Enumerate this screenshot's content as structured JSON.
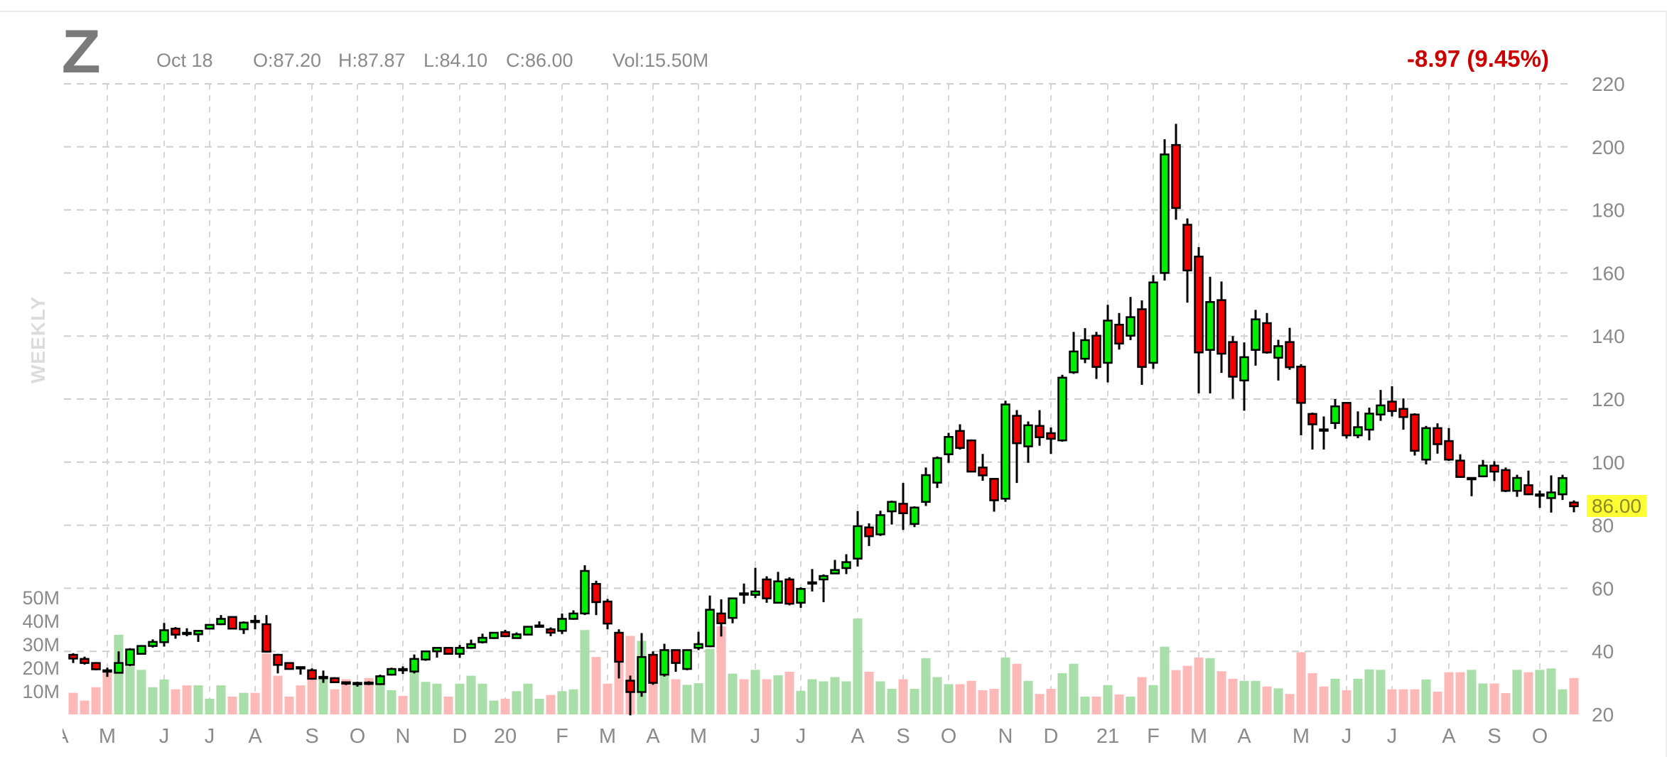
{
  "header": {
    "symbol": "Z",
    "date": "Oct 18",
    "open": "O:87.20",
    "high": "H:87.87",
    "low": "L:84.10",
    "close": "C:86.00",
    "volume": "Vol:15.50M",
    "change": "-8.97 (9.45%)",
    "interval": "WEEKLY",
    "last_price": "86.00"
  },
  "colors": {
    "up": "#00ee00",
    "down": "#ee0000",
    "volume_up": "#a8dfa8",
    "volume_down": "#ffb8b8",
    "change_text": "#cc0000",
    "last_price_highlight": "#ffff33"
  },
  "chart_data": {
    "type": "candlestick",
    "interval": "weekly",
    "ylim": [
      20,
      220
    ],
    "yticks": [
      220,
      200,
      180,
      160,
      140,
      120,
      100,
      80,
      60,
      40,
      20
    ],
    "volume_ticks": [
      {
        "label": "50M",
        "value": 50
      },
      {
        "label": "40M",
        "value": 40
      },
      {
        "label": "30M",
        "value": 30
      },
      {
        "label": "20M",
        "value": 20
      },
      {
        "label": "10M",
        "value": 10
      }
    ],
    "grid": true,
    "xticks": [
      {
        "label": "A",
        "date": "2019-04-01"
      },
      {
        "label": "M",
        "date": "2019-04-29"
      },
      {
        "label": "J",
        "date": "2019-06-03"
      },
      {
        "label": "J",
        "date": "2019-07-01"
      },
      {
        "label": "A",
        "date": "2019-07-29"
      },
      {
        "label": "S",
        "date": "2019-09-02"
      },
      {
        "label": "O",
        "date": "2019-09-30"
      },
      {
        "label": "N",
        "date": "2019-10-28"
      },
      {
        "label": "D",
        "date": "2019-12-02"
      },
      {
        "label": "20",
        "date": "2019-12-30"
      },
      {
        "label": "F",
        "date": "2020-02-03"
      },
      {
        "label": "M",
        "date": "2020-03-02"
      },
      {
        "label": "A",
        "date": "2020-03-30"
      },
      {
        "label": "M",
        "date": "2020-04-27"
      },
      {
        "label": "J",
        "date": "2020-06-01"
      },
      {
        "label": "J",
        "date": "2020-06-29"
      },
      {
        "label": "A",
        "date": "2020-08-03"
      },
      {
        "label": "S",
        "date": "2020-08-31"
      },
      {
        "label": "O",
        "date": "2020-09-28"
      },
      {
        "label": "N",
        "date": "2020-11-02"
      },
      {
        "label": "D",
        "date": "2020-11-30"
      },
      {
        "label": "21",
        "date": "2021-01-04"
      },
      {
        "label": "F",
        "date": "2021-02-01"
      },
      {
        "label": "M",
        "date": "2021-03-01"
      },
      {
        "label": "A",
        "date": "2021-03-29"
      },
      {
        "label": "M",
        "date": "2021-05-03"
      },
      {
        "label": "J",
        "date": "2021-05-31"
      },
      {
        "label": "J",
        "date": "2021-06-28"
      },
      {
        "label": "A",
        "date": "2021-08-02"
      },
      {
        "label": "S",
        "date": "2021-08-30"
      },
      {
        "label": "O",
        "date": "2021-09-27"
      }
    ],
    "columns": [
      "date",
      "open",
      "high",
      "low",
      "close",
      "volume_M"
    ],
    "candles": [
      [
        "2019-04-08",
        38.9,
        39.4,
        36.3,
        37.7,
        9.2
      ],
      [
        "2019-04-15",
        37.6,
        38.3,
        35.8,
        36.3,
        5.9
      ],
      [
        "2019-04-22",
        36.3,
        36.6,
        34.0,
        34.3,
        11.6
      ],
      [
        "2019-04-29",
        34.0,
        34.8,
        31.9,
        33.9,
        18.3
      ],
      [
        "2019-05-06",
        33.2,
        40.0,
        33.0,
        36.3,
        34.0
      ],
      [
        "2019-05-13",
        35.7,
        41.0,
        35.3,
        40.6,
        20.5
      ],
      [
        "2019-05-20",
        39.2,
        42.0,
        39.0,
        41.7,
        19.0
      ],
      [
        "2019-05-27",
        41.7,
        43.8,
        41.2,
        43.0,
        11.6
      ],
      [
        "2019-06-03",
        42.9,
        49.0,
        41.5,
        46.7,
        14.9
      ],
      [
        "2019-06-10",
        47.2,
        47.7,
        44.0,
        45.3,
        10.7
      ],
      [
        "2019-06-17",
        45.9,
        47.3,
        44.8,
        45.7,
        12.4
      ],
      [
        "2019-06-24",
        45.4,
        46.7,
        43.0,
        46.5,
        12.4
      ],
      [
        "2019-07-01",
        47.2,
        48.6,
        47.0,
        48.4,
        6.7
      ],
      [
        "2019-07-08",
        48.6,
        51.5,
        48.3,
        50.3,
        12.4
      ],
      [
        "2019-07-15",
        50.9,
        51.0,
        47.1,
        47.2,
        7.6
      ],
      [
        "2019-07-22",
        47.0,
        49.5,
        45.5,
        49.1,
        9.2
      ],
      [
        "2019-07-29",
        49.7,
        51.5,
        47.0,
        49.6,
        9.2
      ],
      [
        "2019-08-05",
        48.6,
        51.5,
        39.6,
        39.9,
        26.0
      ],
      [
        "2019-08-12",
        38.9,
        39.2,
        33.0,
        35.7,
        16.5
      ],
      [
        "2019-08-19",
        36.3,
        36.5,
        34.2,
        34.4,
        7.6
      ],
      [
        "2019-08-26",
        35.0,
        35.1,
        32.6,
        34.6,
        12.4
      ],
      [
        "2019-09-02",
        34.0,
        34.6,
        31.0,
        31.3,
        15.0
      ],
      [
        "2019-09-09",
        31.8,
        33.9,
        30.0,
        31.9,
        16.5
      ],
      [
        "2019-09-16",
        31.5,
        31.8,
        30.0,
        30.2,
        10.7
      ],
      [
        "2019-09-23",
        30.2,
        30.4,
        29.3,
        29.9,
        15.0
      ],
      [
        "2019-09-30",
        29.9,
        30.4,
        28.8,
        30.0,
        12.4
      ],
      [
        "2019-10-07",
        30.1,
        30.5,
        29.3,
        30.0,
        15.5
      ],
      [
        "2019-10-14",
        29.6,
        32.6,
        29.3,
        32.1,
        13.1
      ],
      [
        "2019-10-21",
        32.6,
        34.8,
        32.3,
        34.4,
        10.3
      ],
      [
        "2019-10-28",
        34.4,
        35.2,
        32.8,
        34.3,
        7.9
      ],
      [
        "2019-11-04",
        33.6,
        39.0,
        33.0,
        37.6,
        18.3
      ],
      [
        "2019-11-11",
        37.4,
        40.2,
        37.0,
        40.0,
        13.9
      ],
      [
        "2019-11-18",
        40.0,
        41.3,
        38.0,
        41.1,
        13.1
      ],
      [
        "2019-11-25",
        41.1,
        41.3,
        39.0,
        39.2,
        7.6
      ],
      [
        "2019-12-02",
        39.2,
        42.0,
        37.9,
        41.1,
        13.1
      ],
      [
        "2019-12-09",
        41.1,
        43.7,
        40.8,
        42.3,
        16.5
      ],
      [
        "2019-12-16",
        42.9,
        45.6,
        42.5,
        44.3,
        13.1
      ],
      [
        "2019-12-23",
        44.2,
        46.0,
        43.9,
        45.9,
        5.9
      ],
      [
        "2019-12-30",
        46.1,
        46.8,
        44.5,
        44.8,
        6.7
      ],
      [
        "2020-01-06",
        44.2,
        46.0,
        44.0,
        45.4,
        9.9
      ],
      [
        "2020-01-13",
        45.3,
        48.0,
        45.1,
        47.8,
        13.1
      ],
      [
        "2020-01-20",
        48.0,
        49.5,
        47.8,
        48.2,
        6.7
      ],
      [
        "2020-01-27",
        47.0,
        47.6,
        44.8,
        45.9,
        8.3
      ],
      [
        "2020-02-03",
        46.5,
        52.0,
        45.5,
        50.3,
        9.9
      ],
      [
        "2020-02-10",
        50.3,
        53.0,
        50.0,
        52.0,
        10.7
      ],
      [
        "2020-02-17",
        52.0,
        67.3,
        51.5,
        65.5,
        36.0
      ],
      [
        "2020-02-24",
        61.4,
        62.4,
        51.5,
        55.6,
        24.5
      ],
      [
        "2020-03-02",
        55.8,
        56.6,
        47.0,
        48.8,
        13.1
      ],
      [
        "2020-03-09",
        45.9,
        47.0,
        31.4,
        36.7,
        33.5
      ],
      [
        "2020-03-16",
        30.7,
        32.3,
        19.7,
        27.1,
        33.5
      ],
      [
        "2020-03-23",
        27.1,
        45.8,
        25.6,
        38.2,
        31.4
      ],
      [
        "2020-03-30",
        38.9,
        40.0,
        29.4,
        30.0,
        13.1
      ],
      [
        "2020-04-06",
        32.6,
        42.4,
        32.0,
        40.4,
        16.6
      ],
      [
        "2020-04-13",
        40.4,
        40.6,
        33.5,
        36.3,
        15.0
      ],
      [
        "2020-04-20",
        34.4,
        40.6,
        34.0,
        40.4,
        12.6
      ],
      [
        "2020-04-27",
        41.1,
        46.2,
        40.4,
        42.3,
        13.3
      ],
      [
        "2020-05-04",
        41.6,
        57.7,
        41.3,
        53.2,
        28.0
      ],
      [
        "2020-05-11",
        52.0,
        56.5,
        44.7,
        48.9,
        37.6
      ],
      [
        "2020-05-18",
        50.6,
        57.0,
        48.9,
        56.8,
        17.4
      ],
      [
        "2020-05-25",
        58.4,
        61.5,
        55.1,
        58.2,
        15.0
      ],
      [
        "2020-06-01",
        57.9,
        66.5,
        56.9,
        59.0,
        19.0
      ],
      [
        "2020-06-08",
        62.8,
        63.8,
        55.4,
        56.8,
        15.0
      ],
      [
        "2020-06-15",
        55.4,
        65.2,
        55.2,
        62.2,
        16.7
      ],
      [
        "2020-06-22",
        62.8,
        63.5,
        54.6,
        55.1,
        18.2
      ],
      [
        "2020-06-29",
        55.4,
        60.3,
        53.8,
        59.8,
        10.1
      ],
      [
        "2020-07-06",
        61.8,
        66.1,
        59.0,
        61.9,
        15.0
      ],
      [
        "2020-07-13",
        62.8,
        64.4,
        55.6,
        63.9,
        14.1
      ],
      [
        "2020-07-20",
        64.7,
        69.0,
        64.5,
        65.8,
        15.9
      ],
      [
        "2020-07-27",
        66.4,
        70.8,
        64.5,
        68.3,
        14.1
      ],
      [
        "2020-08-03",
        69.4,
        84.5,
        66.9,
        79.7,
        40.9
      ],
      [
        "2020-08-10",
        79.3,
        80.6,
        73.4,
        76.5,
        18.2
      ],
      [
        "2020-08-17",
        77.1,
        84.6,
        76.6,
        83.2,
        14.1
      ],
      [
        "2020-08-24",
        84.4,
        87.8,
        80.2,
        87.4,
        10.9
      ],
      [
        "2020-08-31",
        86.8,
        93.4,
        78.5,
        83.8,
        15.0
      ],
      [
        "2020-09-07",
        80.4,
        86.0,
        79.4,
        85.6,
        10.9
      ],
      [
        "2020-09-14",
        87.4,
        98.3,
        86.1,
        95.9,
        24.0
      ],
      [
        "2020-09-21",
        93.5,
        101.8,
        91.8,
        101.3,
        15.9
      ],
      [
        "2020-09-28",
        102.5,
        109.3,
        99.8,
        108.0,
        12.9
      ],
      [
        "2020-10-05",
        109.9,
        112.0,
        104.0,
        104.5,
        12.9
      ],
      [
        "2020-10-12",
        106.9,
        107.2,
        96.8,
        97.0,
        14.3
      ],
      [
        "2020-10-19",
        98.3,
        102.6,
        94.1,
        95.8,
        10.3
      ],
      [
        "2020-10-26",
        94.7,
        95.0,
        84.3,
        87.9,
        10.9
      ],
      [
        "2020-11-02",
        88.4,
        119.5,
        87.4,
        118.3,
        24.3
      ],
      [
        "2020-11-09",
        114.7,
        116.5,
        93.4,
        106.0,
        21.6
      ],
      [
        "2020-11-16",
        105.0,
        112.9,
        99.8,
        111.7,
        14.3
      ],
      [
        "2020-11-23",
        111.5,
        116.5,
        105.2,
        107.9,
        8.7
      ],
      [
        "2020-11-30",
        109.2,
        111.0,
        102.6,
        107.4,
        10.9
      ],
      [
        "2020-12-07",
        106.9,
        127.7,
        106.5,
        126.8,
        17.6
      ],
      [
        "2020-12-14",
        128.5,
        141.3,
        128.0,
        135.1,
        21.6
      ],
      [
        "2020-12-21",
        132.8,
        142.5,
        131.4,
        138.7,
        7.6
      ],
      [
        "2020-12-28",
        140.1,
        141.3,
        126.4,
        130.2,
        7.6
      ],
      [
        "2021-01-04",
        131.5,
        149.9,
        125.3,
        144.9,
        12.5
      ],
      [
        "2021-01-11",
        143.6,
        147.3,
        135.7,
        137.6,
        8.5
      ],
      [
        "2021-01-18",
        140.1,
        152.4,
        138.7,
        146.0,
        7.6
      ],
      [
        "2021-01-25",
        148.5,
        151.3,
        124.5,
        130.2,
        15.9
      ],
      [
        "2021-02-01",
        131.5,
        159.3,
        129.6,
        157.0,
        12.5
      ],
      [
        "2021-02-08",
        160.0,
        202.4,
        157.6,
        197.6,
        28.9
      ],
      [
        "2021-02-15",
        200.6,
        207.3,
        176.9,
        180.6,
        18.9
      ],
      [
        "2021-02-22",
        175.3,
        177.3,
        150.6,
        160.8,
        20.7
      ],
      [
        "2021-03-01",
        165.2,
        168.2,
        121.8,
        134.8,
        24.3
      ],
      [
        "2021-03-08",
        135.6,
        158.8,
        121.8,
        150.8,
        24.0
      ],
      [
        "2021-03-15",
        151.4,
        157.3,
        128.3,
        134.4,
        18.4
      ],
      [
        "2021-03-22",
        138.1,
        140.0,
        120.1,
        127.1,
        15.2
      ],
      [
        "2021-03-29",
        125.9,
        138.0,
        116.3,
        133.3,
        14.3
      ],
      [
        "2021-04-05",
        135.6,
        148.3,
        130.6,
        145.3,
        14.3
      ],
      [
        "2021-04-12",
        144.1,
        147.3,
        134.4,
        134.8,
        11.9
      ],
      [
        "2021-04-19",
        133.1,
        138.8,
        125.9,
        136.8,
        11.1
      ],
      [
        "2021-04-26",
        138.1,
        142.6,
        129.3,
        130.1,
        8.7
      ],
      [
        "2021-05-03",
        130.3,
        131.1,
        108.5,
        118.8,
        26.5
      ],
      [
        "2021-05-10",
        115.3,
        115.7,
        104.0,
        112.0,
        17.6
      ],
      [
        "2021-05-17",
        110.4,
        114.5,
        104.0,
        110.2,
        11.9
      ],
      [
        "2021-05-24",
        112.4,
        120.0,
        110.5,
        117.7,
        15.2
      ],
      [
        "2021-05-31",
        118.8,
        119.0,
        107.5,
        108.5,
        10.3
      ],
      [
        "2021-06-07",
        108.5,
        116.1,
        107.6,
        111.1,
        15.2
      ],
      [
        "2021-06-14",
        110.3,
        117.3,
        106.9,
        115.4,
        19.2
      ],
      [
        "2021-06-21",
        115.1,
        122.9,
        113.1,
        118.0,
        19.0
      ],
      [
        "2021-06-28",
        119.2,
        124.1,
        114.5,
        116.2,
        10.7
      ],
      [
        "2021-07-05",
        116.9,
        120.2,
        110.3,
        114.3,
        10.7
      ],
      [
        "2021-07-12",
        115.1,
        115.5,
        102.1,
        103.6,
        10.7
      ],
      [
        "2021-07-19",
        100.8,
        111.5,
        99.3,
        110.8,
        14.9
      ],
      [
        "2021-07-26",
        110.8,
        112.3,
        102.7,
        105.7,
        9.7
      ],
      [
        "2021-08-02",
        106.7,
        110.8,
        100.4,
        100.8,
        18.0
      ],
      [
        "2021-08-09",
        100.5,
        102.5,
        95.0,
        95.3,
        18.0
      ],
      [
        "2021-08-16",
        94.9,
        95.2,
        89.2,
        95.0,
        19.0
      ],
      [
        "2021-08-23",
        95.5,
        100.7,
        95.2,
        98.9,
        13.2
      ],
      [
        "2021-08-30",
        98.9,
        100.3,
        94.0,
        97.0,
        13.2
      ],
      [
        "2021-09-06",
        97.5,
        98.3,
        90.5,
        90.9,
        9.1
      ],
      [
        "2021-09-13",
        90.9,
        96.0,
        89.0,
        95.0,
        19.0
      ],
      [
        "2021-09-20",
        92.7,
        97.3,
        89.5,
        89.8,
        18.0
      ],
      [
        "2021-09-27",
        89.7,
        91.0,
        85.5,
        89.8,
        19.0
      ],
      [
        "2021-10-04",
        88.6,
        95.8,
        84.0,
        90.4,
        19.6
      ],
      [
        "2021-10-11",
        89.8,
        96.0,
        88.0,
        94.97,
        10.7
      ],
      [
        "2021-10-18",
        87.2,
        87.87,
        84.1,
        86.0,
        15.5
      ]
    ]
  }
}
